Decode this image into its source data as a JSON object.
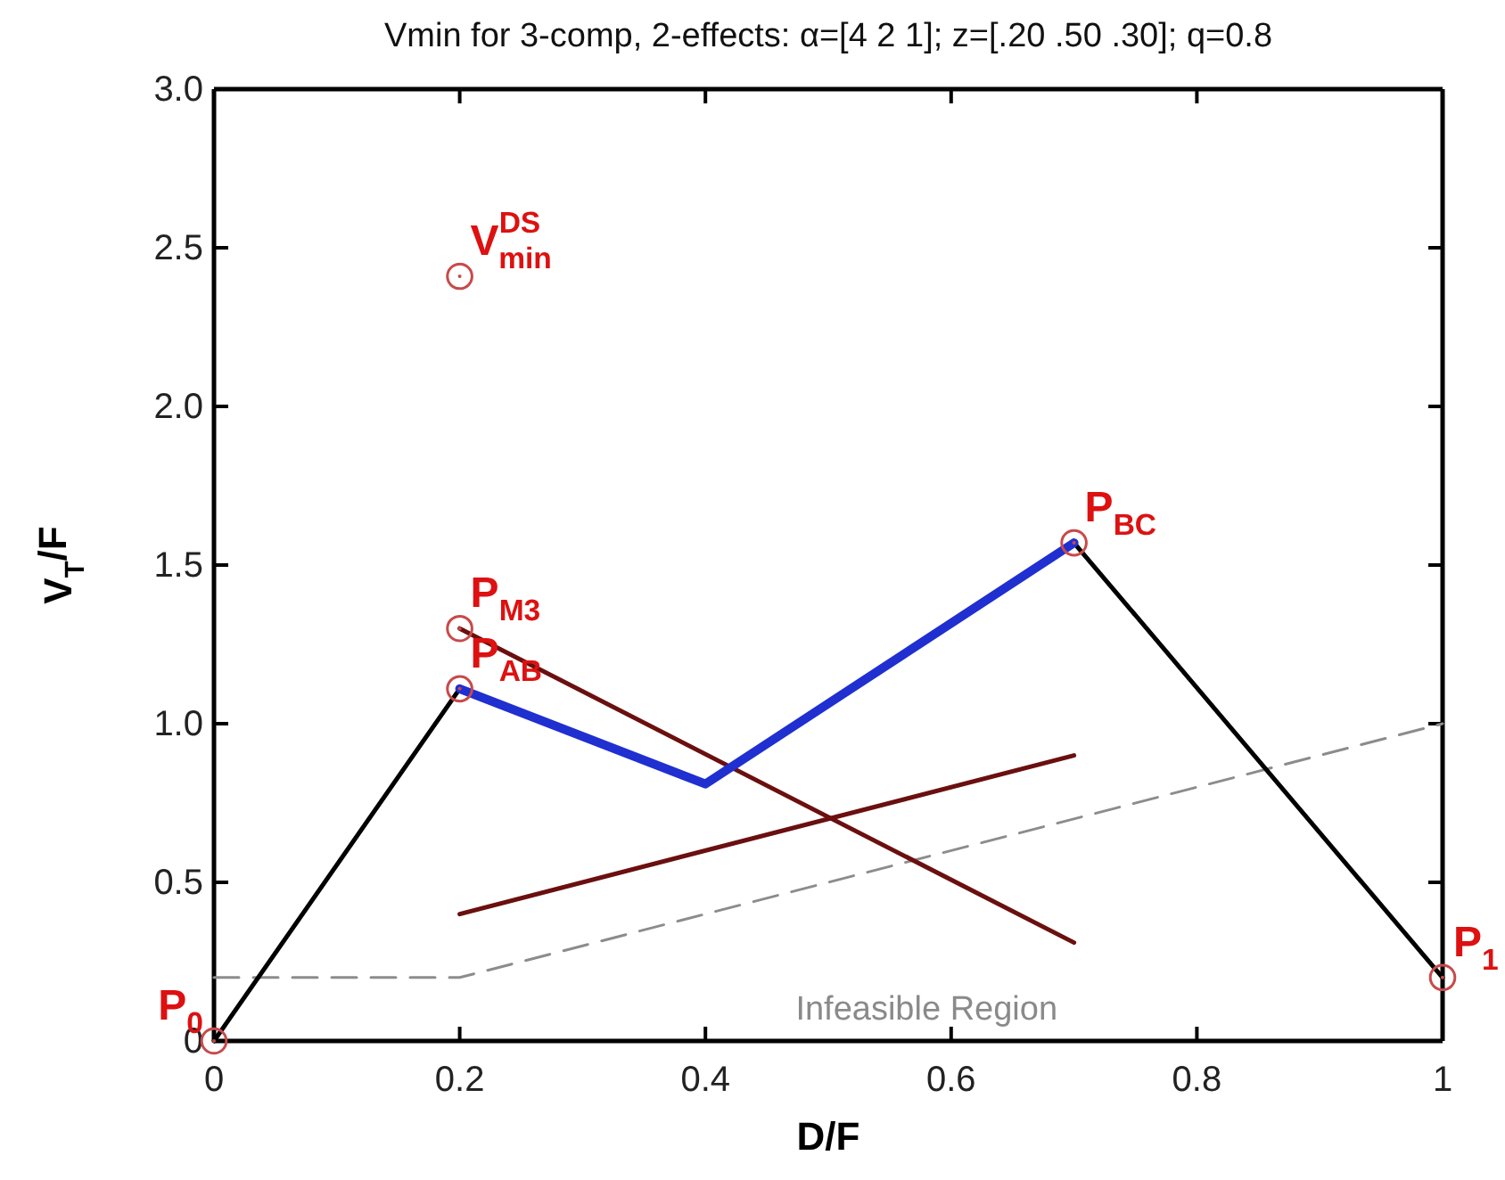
{
  "chart_data": {
    "type": "line",
    "title": "Vmin for 3-comp, 2-effects: α=[4 2 1]; z=[.20 .50 .30]; q=0.8",
    "xlabel": "D/F",
    "ylabel": "V$_{T}$/F",
    "xlim": [
      0,
      1
    ],
    "ylim": [
      0,
      3
    ],
    "xticks": [
      0,
      0.2,
      0.4,
      0.6,
      0.8,
      1
    ],
    "yticks": [
      0,
      0.5,
      {
        "value": 1,
        "label": "1.0"
      },
      1.5,
      {
        "value": 2,
        "label": "2.0"
      },
      2.5,
      {
        "value": 3,
        "label": "3.0"
      }
    ],
    "grid": false,
    "series": [
      {
        "color": "#8c8c8c",
        "line_style": "dashed",
        "x": [
          0,
          0.2,
          1
        ],
        "values": [
          0.2,
          0.2,
          1.0
        ]
      },
      {
        "color": "#000000",
        "line_style": "solid",
        "x": [
          0,
          0.2
        ],
        "values": [
          0,
          1.11
        ]
      },
      {
        "color": "#000000",
        "line_style": "solid",
        "x": [
          0.7,
          1
        ],
        "values": [
          1.57,
          0.2
        ]
      },
      {
        "color": "#6b0f0f",
        "line_style": "solid",
        "x": [
          0.2,
          0.7
        ],
        "values": [
          1.3,
          0.31
        ]
      },
      {
        "color": "#6b0f0f",
        "line_style": "solid",
        "x": [
          0.2,
          0.7
        ],
        "values": [
          0.4,
          0.9
        ]
      },
      {
        "color": "#1f2fd0",
        "line_style": "solid",
        "x": [
          0.2,
          0.4,
          0.7
        ],
        "values": [
          1.11,
          0.81,
          1.57
        ]
      },
      {
        "type": "scatter",
        "color": "#c84a4a",
        "marker": "circle",
        "x": [
          0,
          1,
          0.2,
          0.2,
          0.2,
          0.7
        ],
        "values": [
          0,
          0.2,
          1.11,
          1.3,
          2.41,
          1.57
        ]
      }
    ],
    "annotations": [
      {
        "text": "P$_{0}$",
        "x": 0,
        "y": 0
      },
      {
        "text": "P$_{1}$",
        "x": 1,
        "y": 0.2
      },
      {
        "text": "P$_{AB}$",
        "x": 0.2,
        "y": 1.11
      },
      {
        "text": "P$_{M3}$",
        "x": 0.2,
        "y": 1.3
      },
      {
        "text": "V$^{DS}$$_{min}$",
        "x": 0.2,
        "y": 2.41
      },
      {
        "text": "P$_{BC}$",
        "x": 0.7,
        "y": 1.57
      },
      "Infeasible Region"
    ]
  }
}
